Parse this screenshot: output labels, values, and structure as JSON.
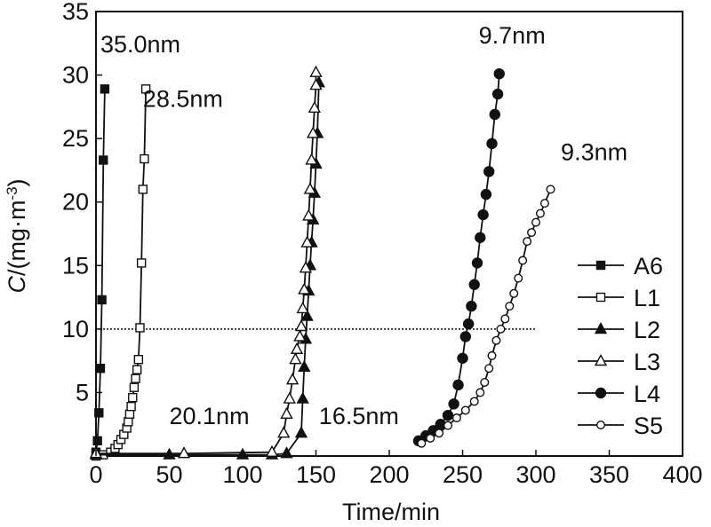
{
  "chart_data": {
    "type": "scatter",
    "title": "",
    "xlabel": "Time/min",
    "ylabel": {
      "italic": "C",
      "main": "/(mg·m",
      "sup": "-3",
      "close": ")"
    },
    "xlim": [
      0,
      400
    ],
    "ylim": [
      0,
      35
    ],
    "xticks": [
      0,
      50,
      100,
      150,
      200,
      250,
      300,
      350,
      400
    ],
    "yticks": [
      5,
      10,
      15,
      20,
      25,
      30,
      35
    ],
    "reference_line": {
      "y": 10,
      "style": "dotted",
      "x_range": [
        0,
        300
      ]
    },
    "legend_position": "right",
    "series": [
      {
        "name": "A6",
        "marker": "square-filled",
        "points": [
          [
            0,
            0.3
          ],
          [
            1,
            1.2
          ],
          [
            2,
            3.4
          ],
          [
            3,
            6.9
          ],
          [
            4,
            12.3
          ],
          [
            5,
            23.3
          ],
          [
            6,
            28.9
          ]
        ]
      },
      {
        "name": "L1",
        "marker": "square-open",
        "points": [
          [
            0,
            0
          ],
          [
            5,
            0.1
          ],
          [
            10,
            0.3
          ],
          [
            13,
            0.6
          ],
          [
            15,
            0.9
          ],
          [
            17,
            1.3
          ],
          [
            19,
            1.7
          ],
          [
            21,
            2.2
          ],
          [
            22,
            2.7
          ],
          [
            23,
            3.3
          ],
          [
            24,
            3.9
          ],
          [
            25,
            4.6
          ],
          [
            26,
            5.4
          ],
          [
            27,
            6.1
          ],
          [
            28,
            6.8
          ],
          [
            29,
            7.6
          ],
          [
            30,
            10.1
          ],
          [
            31,
            15.2
          ],
          [
            32,
            21
          ],
          [
            33,
            23.4
          ],
          [
            34,
            28.9
          ]
        ]
      },
      {
        "name": "L2",
        "marker": "triangle-filled",
        "points": [
          [
            0,
            0.1
          ],
          [
            50,
            0.1
          ],
          [
            100,
            0.1
          ],
          [
            120,
            0.1
          ],
          [
            130,
            0.2
          ],
          [
            140,
            1.8
          ],
          [
            141,
            4.5
          ],
          [
            142,
            7.0
          ],
          [
            143,
            9.2
          ],
          [
            144,
            11.0
          ],
          [
            145,
            13.0
          ],
          [
            146,
            15.0
          ],
          [
            147,
            16.8
          ],
          [
            148,
            18.6
          ],
          [
            149,
            20.7
          ],
          [
            150,
            23.0
          ],
          [
            151,
            25.4
          ],
          [
            152,
            29.4
          ]
        ]
      },
      {
        "name": "L3",
        "marker": "triangle-open",
        "points": [
          [
            0,
            0.2
          ],
          [
            60,
            0.2
          ],
          [
            120,
            0.3
          ],
          [
            128,
            1.8
          ],
          [
            130,
            3.3
          ],
          [
            132,
            4.5
          ],
          [
            134,
            6.0
          ],
          [
            136,
            7.6
          ],
          [
            137,
            8.4
          ],
          [
            139,
            9.4
          ],
          [
            140,
            10.2
          ],
          [
            141,
            11.6
          ],
          [
            142,
            13.1
          ],
          [
            143,
            14.8
          ],
          [
            144,
            16.8
          ],
          [
            145,
            18.9
          ],
          [
            146,
            21.0
          ],
          [
            147,
            23.3
          ],
          [
            148,
            25.4
          ],
          [
            149,
            27.4
          ],
          [
            150,
            29.2
          ],
          [
            150,
            30.2
          ]
        ]
      },
      {
        "name": "L4",
        "marker": "circle-filled",
        "points": [
          [
            220,
            1.2
          ],
          [
            225,
            1.6
          ],
          [
            230,
            2.0
          ],
          [
            235,
            2.5
          ],
          [
            240,
            3.2
          ],
          [
            244,
            4.1
          ],
          [
            247,
            5.6
          ],
          [
            250,
            7.7
          ],
          [
            252,
            9.4
          ],
          [
            254,
            10.4
          ],
          [
            256,
            11.8
          ],
          [
            258,
            13.5
          ],
          [
            260,
            15.2
          ],
          [
            262,
            17.2
          ],
          [
            264,
            19.0
          ],
          [
            266,
            20.6
          ],
          [
            268,
            22.4
          ],
          [
            270,
            24.6
          ],
          [
            272,
            26.9
          ],
          [
            274,
            28.5
          ],
          [
            275,
            30.1
          ]
        ]
      },
      {
        "name": "S5",
        "marker": "circle-open",
        "points": [
          [
            222,
            1.0
          ],
          [
            228,
            1.4
          ],
          [
            234,
            1.8
          ],
          [
            240,
            2.4
          ],
          [
            246,
            3.0
          ],
          [
            252,
            3.6
          ],
          [
            258,
            4.3
          ],
          [
            262,
            5.0
          ],
          [
            265,
            5.8
          ],
          [
            268,
            6.9
          ],
          [
            270,
            7.9
          ],
          [
            273,
            9.1
          ],
          [
            276,
            10.0
          ],
          [
            279,
            10.8
          ],
          [
            282,
            11.8
          ],
          [
            285,
            12.8
          ],
          [
            288,
            14.0
          ],
          [
            291,
            15.4
          ],
          [
            294,
            16.9
          ],
          [
            297,
            17.6
          ],
          [
            300,
            18.4
          ],
          [
            303,
            19.1
          ],
          [
            306,
            19.9
          ],
          [
            310,
            21.0
          ]
        ]
      }
    ],
    "annotations": [
      {
        "text": "35.0nm",
        "x": 3,
        "y": 31.8
      },
      {
        "text": "28.5nm",
        "x": 32,
        "y": 27.5
      },
      {
        "text": "20.1nm",
        "x": 50,
        "y": 2.5
      },
      {
        "text": "16.5nm",
        "x": 152,
        "y": 2.5
      },
      {
        "text": "9.7nm",
        "x": 261,
        "y": 32.5
      },
      {
        "text": "9.3nm",
        "x": 317,
        "y": 23.3
      }
    ]
  }
}
